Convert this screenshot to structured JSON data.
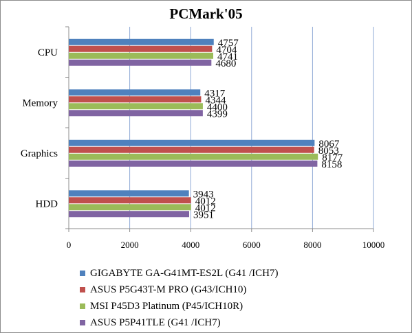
{
  "chart_data": {
    "type": "bar",
    "orientation": "horizontal",
    "title": "PCMark'05",
    "categories": [
      "CPU",
      "Memory",
      "Graphics",
      "HDD"
    ],
    "series": [
      {
        "name": "GIGABYTE GA-G41MT-ES2L (G41 /ICH7)",
        "color": "#4f81bd",
        "values": [
          4757,
          4317,
          8067,
          3943
        ]
      },
      {
        "name": "ASUS P5G43T-M PRO (G43/ICH10)",
        "color": "#c0504d",
        "values": [
          4704,
          4344,
          8053,
          4012
        ]
      },
      {
        "name": "MSI P45D3 Platinum (P45/ICH10R)",
        "color": "#9bbb59",
        "values": [
          4741,
          4400,
          8177,
          4012
        ]
      },
      {
        "name": "ASUS P5P41TLE (G41 /ICH7)",
        "color": "#8064a2",
        "values": [
          4680,
          4399,
          8158,
          3951
        ]
      }
    ],
    "xlim": [
      0,
      10000
    ],
    "xticks": [
      "0",
      "2000",
      "4000",
      "6000",
      "8000",
      "10000"
    ],
    "grid": true,
    "legend_position": "bottom"
  }
}
